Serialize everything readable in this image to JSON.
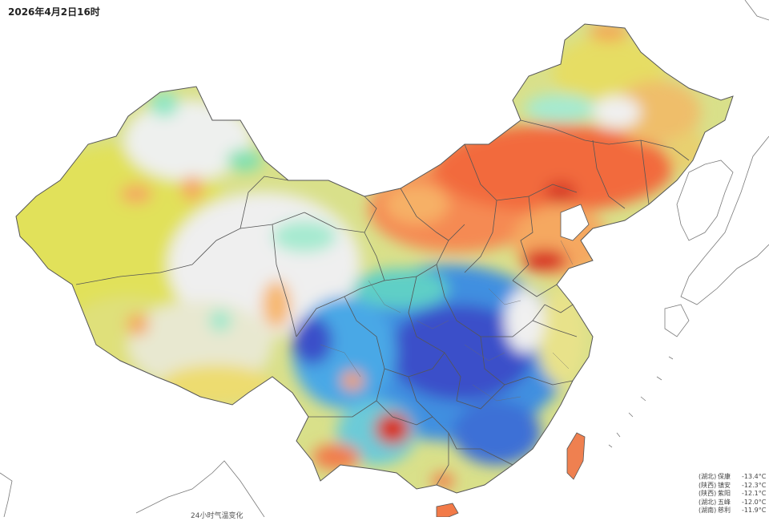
{
  "header": {
    "timestamp": "2026年4月2日16时"
  },
  "legend": {
    "rows": [
      {
        "province": "(湖北)",
        "city": "保康",
        "temp": "-13.4°C"
      },
      {
        "province": "(陕西)",
        "city": "镇安",
        "temp": "-12.3°C"
      },
      {
        "province": "(陕西)",
        "city": "紫阳",
        "temp": "-12.1°C"
      },
      {
        "province": "(湖北)",
        "city": "五峰",
        "temp": "-12.0°C"
      },
      {
        "province": "(湖南)",
        "city": "慈利",
        "temp": "-11.9°C"
      }
    ]
  },
  "footer": {
    "caption": "24小时气温变化"
  },
  "colors": {
    "strong_warming": "#d7301f",
    "warming": "#f46d43",
    "mild_warming": "#fdae61",
    "slight_warming": "#e6e35a",
    "neutral": "#f0f0f0",
    "slight_cooling": "#8ee6c4",
    "cooling": "#4f9be0",
    "strong_cooling": "#3b4fc9",
    "border": "#555555"
  }
}
